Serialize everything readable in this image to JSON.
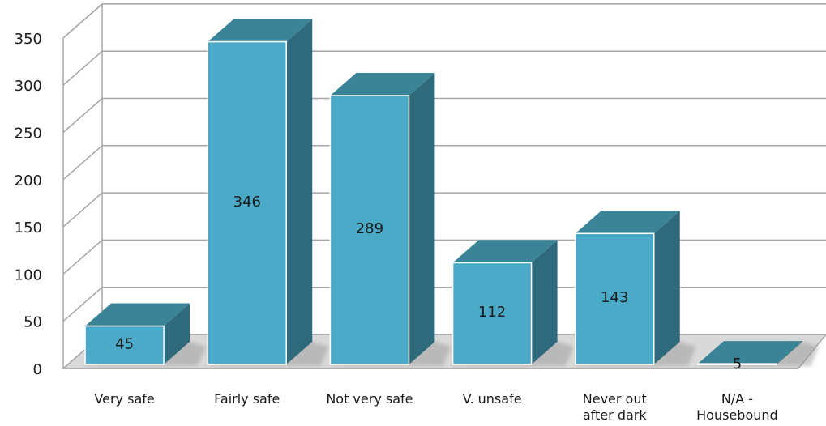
{
  "chart_data": {
    "type": "bar",
    "categories": [
      [
        "Very safe"
      ],
      [
        "Fairly safe"
      ],
      [
        "Not very safe"
      ],
      [
        "V. unsafe"
      ],
      [
        "Never out",
        "after dark"
      ],
      [
        "N/A -",
        "Housebound"
      ]
    ],
    "values": [
      45,
      346,
      289,
      112,
      143,
      5
    ],
    "data_labels": [
      "45",
      "346",
      "289",
      "112",
      "143",
      "5"
    ],
    "y_ticks": [
      "0",
      "50",
      "100",
      "150",
      "200",
      "250",
      "300",
      "350"
    ],
    "ylim": [
      0,
      350
    ],
    "grid": true,
    "style": "3d-column",
    "colors": {
      "front": "#4aaac8",
      "side": "#2f6a7c",
      "top": "#3b8497",
      "grid": "#a6a6a6",
      "floor": "#d9d9d9"
    }
  }
}
